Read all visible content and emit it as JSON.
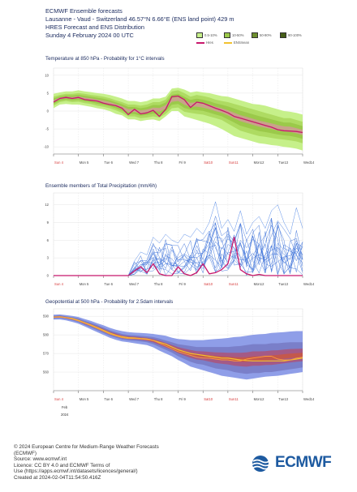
{
  "header": {
    "line1": "ECMWF Ensemble forecasts",
    "line2": "Lausanne - Vaud - Switzerland 46.57°N 6.66°E (ENS land point) 429 m",
    "line3": "HRES Forecast and ENS Distribution",
    "line4": "Sunday 4 February 2024 00 UTC"
  },
  "legend": {
    "items": [
      "0.5-10%",
      "10-50%",
      "50-90%",
      "90-100%"
    ],
    "colors": [
      "#c6f08a",
      "#9bc94a",
      "#6e8e2e",
      "#465e18"
    ],
    "hres_label": "Hres",
    "ens_label": "ENSmean",
    "hres_color": "#c8186c",
    "ens_color": "#f2c230"
  },
  "x_ticks": [
    "Sun 4",
    "Mon 5",
    "Tue 6",
    "Wed 7",
    "Thu 8",
    "Fri 9",
    "Sat10",
    "Sun11",
    "Mon12",
    "Tue13",
    "Wed14"
  ],
  "weekend_color": "#d63a3a",
  "feb_label": "Feb",
  "year_label": "2024",
  "chart_data": [
    {
      "type": "area",
      "title": "Temperature at 850 hPa - Probability for 1°C intervals",
      "ylim": [
        -12,
        12
      ],
      "yticks": [
        10,
        5,
        0,
        -5,
        -10
      ],
      "x": [
        0,
        0.25,
        0.5,
        0.75,
        1,
        1.25,
        1.5,
        1.75,
        2,
        2.25,
        2.5,
        2.75,
        3,
        3.25,
        3.5,
        3.75,
        4,
        4.25,
        4.5,
        4.75,
        5,
        5.25,
        5.5,
        5.75,
        6,
        6.25,
        6.5,
        6.75,
        7,
        7.25,
        7.5,
        7.75,
        8,
        8.25,
        8.5,
        8.75,
        9,
        9.25,
        9.5,
        9.75,
        10
      ],
      "hres": [
        2.5,
        3.5,
        3.8,
        3.5,
        3.8,
        3.2,
        3.0,
        2.8,
        2.2,
        1.8,
        1.5,
        0.8,
        -1.0,
        0.5,
        -0.8,
        -0.5,
        0.2,
        -1.5,
        0.5,
        4.0,
        4.2,
        3.2,
        1.0,
        2.5,
        2.2,
        1.5,
        0.8,
        0.2,
        -0.5,
        -1.5,
        -2.0,
        -2.5,
        -3.0,
        -3.5,
        -4.0,
        -4.5,
        -5.2,
        -5.5,
        -5.6,
        -5.7,
        -6.0
      ],
      "p10": [
        1.5,
        2.5,
        2.8,
        2.5,
        2.6,
        2.2,
        2.0,
        1.5,
        1.2,
        0.8,
        0.2,
        -0.5,
        -1.5,
        -1.5,
        -2.0,
        -1.8,
        -1.5,
        -1.8,
        -0.8,
        0.8,
        1.0,
        -0.2,
        -0.5,
        -0.8,
        -1.0,
        -1.5,
        -2.0,
        -2.5,
        -3.5,
        -4.5,
        -5.5,
        -6.0,
        -6.5,
        -7.0,
        -7.2,
        -7.5,
        -7.8,
        -8.0,
        -8.2,
        -8.5,
        -9.0
      ],
      "p90": [
        4.0,
        4.5,
        4.8,
        4.8,
        5.0,
        4.8,
        4.5,
        4.3,
        4.0,
        3.6,
        3.0,
        2.5,
        1.8,
        1.8,
        1.5,
        1.8,
        2.5,
        2.5,
        3.2,
        5.5,
        5.8,
        5.0,
        4.0,
        4.5,
        4.2,
        3.8,
        3.2,
        2.8,
        2.5,
        2.0,
        1.5,
        1.0,
        0.5,
        0.0,
        -0.5,
        -1.0,
        -1.5,
        -2.0,
        -2.0,
        -2.5,
        -3.0
      ],
      "min": [
        0.8,
        1.8,
        2.0,
        1.8,
        1.8,
        1.5,
        1.2,
        0.8,
        0.5,
        0,
        -0.8,
        -1.2,
        -2.3,
        -2.3,
        -2.8,
        -2.5,
        -2.3,
        -2.8,
        -1.5,
        0,
        0,
        -1.5,
        -2.0,
        -2.5,
        -3.0,
        -3.5,
        -4.2,
        -5.0,
        -6.0,
        -7.0,
        -7.5,
        -8.0,
        -8.5,
        -9.0,
        -9.2,
        -9.5,
        -9.7,
        -10,
        -10.2,
        -10.5,
        -11.0
      ],
      "max": [
        4.8,
        5.2,
        5.5,
        5.5,
        5.8,
        5.5,
        5.3,
        5.0,
        4.8,
        4.5,
        4.0,
        3.5,
        2.8,
        2.8,
        2.5,
        2.8,
        3.5,
        3.5,
        4.0,
        6.3,
        6.5,
        6.0,
        5.2,
        5.5,
        5.2,
        5.0,
        4.6,
        4.2,
        4.0,
        3.5,
        3.0,
        2.5,
        2.0,
        1.8,
        1.5,
        1.0,
        0.5,
        0,
        -0.2,
        -0.5,
        -1.0
      ]
    },
    {
      "type": "line",
      "title": "Ensemble members of Total Precipitation (mm/6h)",
      "ylim": [
        0,
        14
      ],
      "yticks": [
        12,
        9,
        6,
        3,
        0
      ],
      "x": [
        0,
        0.25,
        0.5,
        0.75,
        1,
        1.25,
        1.5,
        1.75,
        2,
        2.25,
        2.5,
        2.75,
        3,
        3.25,
        3.5,
        3.75,
        4,
        4.25,
        4.5,
        4.75,
        5,
        5.25,
        5.5,
        5.75,
        6,
        6.25,
        6.5,
        6.75,
        7,
        7.25,
        7.5,
        7.75,
        8,
        8.25,
        8.5,
        8.75,
        9,
        9.25,
        9.5,
        9.75,
        10
      ],
      "hres": [
        0,
        0,
        0,
        0,
        0,
        0,
        0,
        0,
        0,
        0,
        0,
        0,
        0,
        0.8,
        1.5,
        0.5,
        2.0,
        0.3,
        0,
        0,
        1.5,
        0.3,
        0,
        0.5,
        2.0,
        0.3,
        0.5,
        1.0,
        2.0,
        6.5,
        1.0,
        0.3,
        0,
        0.2,
        0,
        0,
        0,
        0,
        0,
        0,
        0
      ],
      "ens_max": [
        0,
        0,
        0,
        0,
        0,
        0,
        0,
        0,
        0,
        0,
        0,
        0,
        0,
        2.5,
        4.0,
        3.5,
        6.5,
        5.5,
        7.0,
        6.0,
        5.5,
        7.0,
        6.5,
        8.0,
        7.0,
        9.0,
        12.5,
        8.0,
        9.5,
        7.5,
        11.0,
        7.0,
        9.0,
        10.0,
        8.0,
        11.0,
        12.0,
        9.0,
        7.0,
        11.5,
        8.0
      ]
    },
    {
      "type": "area",
      "title": "Geopotential at 500 hPa - Probability for 2.5dam intervals",
      "ylim": [
        550,
        594
      ],
      "yticks": [
        590,
        580,
        570,
        560
      ],
      "x": [
        0,
        0.25,
        0.5,
        0.75,
        1,
        1.25,
        1.5,
        1.75,
        2,
        2.25,
        2.5,
        2.75,
        3,
        3.25,
        3.5,
        3.75,
        4,
        4.25,
        4.5,
        4.75,
        5,
        5.25,
        5.5,
        5.75,
        6,
        6.25,
        6.5,
        6.75,
        7,
        7.25,
        7.5,
        7.75,
        8,
        8.25,
        8.5,
        8.75,
        9,
        9.25,
        9.5,
        9.75,
        10
      ],
      "hres": [
        589.5,
        589.6,
        589.2,
        588.5,
        587.5,
        586.3,
        585.0,
        583.5,
        582.0,
        580.5,
        579.5,
        578.5,
        578.0,
        578.0,
        577.8,
        577.5,
        577.0,
        575.5,
        574.0,
        572.5,
        571.0,
        570.0,
        569.0,
        568.0,
        567.5,
        567.5,
        567.0,
        566.5,
        566.5,
        566.0,
        566.0,
        567.0,
        567.5,
        568.0,
        568.5,
        568.5,
        567.0,
        566.5,
        566.5,
        567.5,
        568.0
      ],
      "ensmean": [
        589.5,
        589.7,
        589.3,
        588.8,
        587.8,
        586.5,
        585.3,
        584.0,
        582.5,
        581.0,
        579.8,
        579.0,
        578.5,
        578.3,
        578.0,
        577.8,
        577.0,
        576.0,
        575.0,
        573.5,
        572.0,
        571.0,
        570.0,
        569.5,
        569.0,
        568.5,
        568.0,
        567.5,
        567.5,
        567.0,
        566.5,
        566.2,
        566.0,
        566.0,
        566.0,
        566.0,
        566.0,
        566.0,
        566.5,
        567.0,
        567.5
      ],
      "p10": [
        588.8,
        589.0,
        588.5,
        587.8,
        586.8,
        585.3,
        584.0,
        582.5,
        581.0,
        579.5,
        578.5,
        577.5,
        577.0,
        576.8,
        576.5,
        576.0,
        575.0,
        573.5,
        572.0,
        570.5,
        568.5,
        567.0,
        565.5,
        564.5,
        564.0,
        563.0,
        562.0,
        561.5,
        561.0,
        560.0,
        559.5,
        559.0,
        559.5,
        559.5,
        560.0,
        560.0,
        560.5,
        561.0,
        561.5,
        562.0,
        562.5
      ],
      "p90": [
        590.2,
        590.5,
        590.0,
        589.5,
        588.8,
        587.5,
        586.5,
        585.3,
        584.0,
        582.5,
        581.5,
        580.5,
        580.0,
        579.8,
        579.5,
        579.2,
        578.8,
        578.0,
        577.0,
        576.0,
        575.0,
        574.5,
        574.0,
        573.5,
        573.5,
        573.5,
        573.5,
        573.5,
        573.5,
        573.8,
        574.0,
        574.5,
        575.0,
        575.0,
        575.0,
        575.5,
        575.5,
        575.8,
        576.0,
        576.0,
        576.0
      ],
      "min": [
        588.2,
        588.3,
        587.8,
        587.0,
        586.0,
        584.5,
        583.0,
        581.5,
        580.0,
        578.5,
        577.3,
        576.5,
        576.0,
        575.5,
        575.0,
        574.5,
        573.3,
        571.5,
        570.0,
        568.5,
        566.5,
        564.8,
        563.0,
        562.0,
        561.0,
        560.0,
        559.0,
        558.0,
        557.5,
        557.0,
        556.5,
        556.0,
        556.5,
        557.0,
        557.5,
        557.8,
        558.0,
        558.5,
        559.0,
        559.5,
        560.0
      ],
      "max": [
        590.8,
        591.0,
        590.6,
        590.2,
        589.6,
        588.5,
        587.5,
        586.3,
        585.2,
        583.8,
        582.8,
        582.0,
        581.5,
        581.2,
        581.0,
        580.8,
        580.5,
        580.0,
        579.5,
        578.5,
        577.8,
        577.5,
        577.2,
        577.2,
        577.2,
        577.5,
        577.8,
        578.0,
        578.3,
        578.8,
        579.0,
        579.5,
        580.0,
        580.3,
        580.5,
        581.0,
        581.3,
        581.5,
        581.8,
        582.0,
        582.0
      ]
    }
  ],
  "footer": {
    "line1": "© 2024 European Centre for Medium-Range Weather Forecasts",
    "line2": "(ECMWF)",
    "line3": "Source: www.ecmwf.int",
    "line4": "Licence: CC BY 4.0 and ECMWF Terms of",
    "line5": "Use (https://apps.ecmwf.int/datasets/licences/general/)",
    "line6": "Created at 2024-02-04T11:54:50.416Z",
    "logo_text": "ECMWF"
  }
}
